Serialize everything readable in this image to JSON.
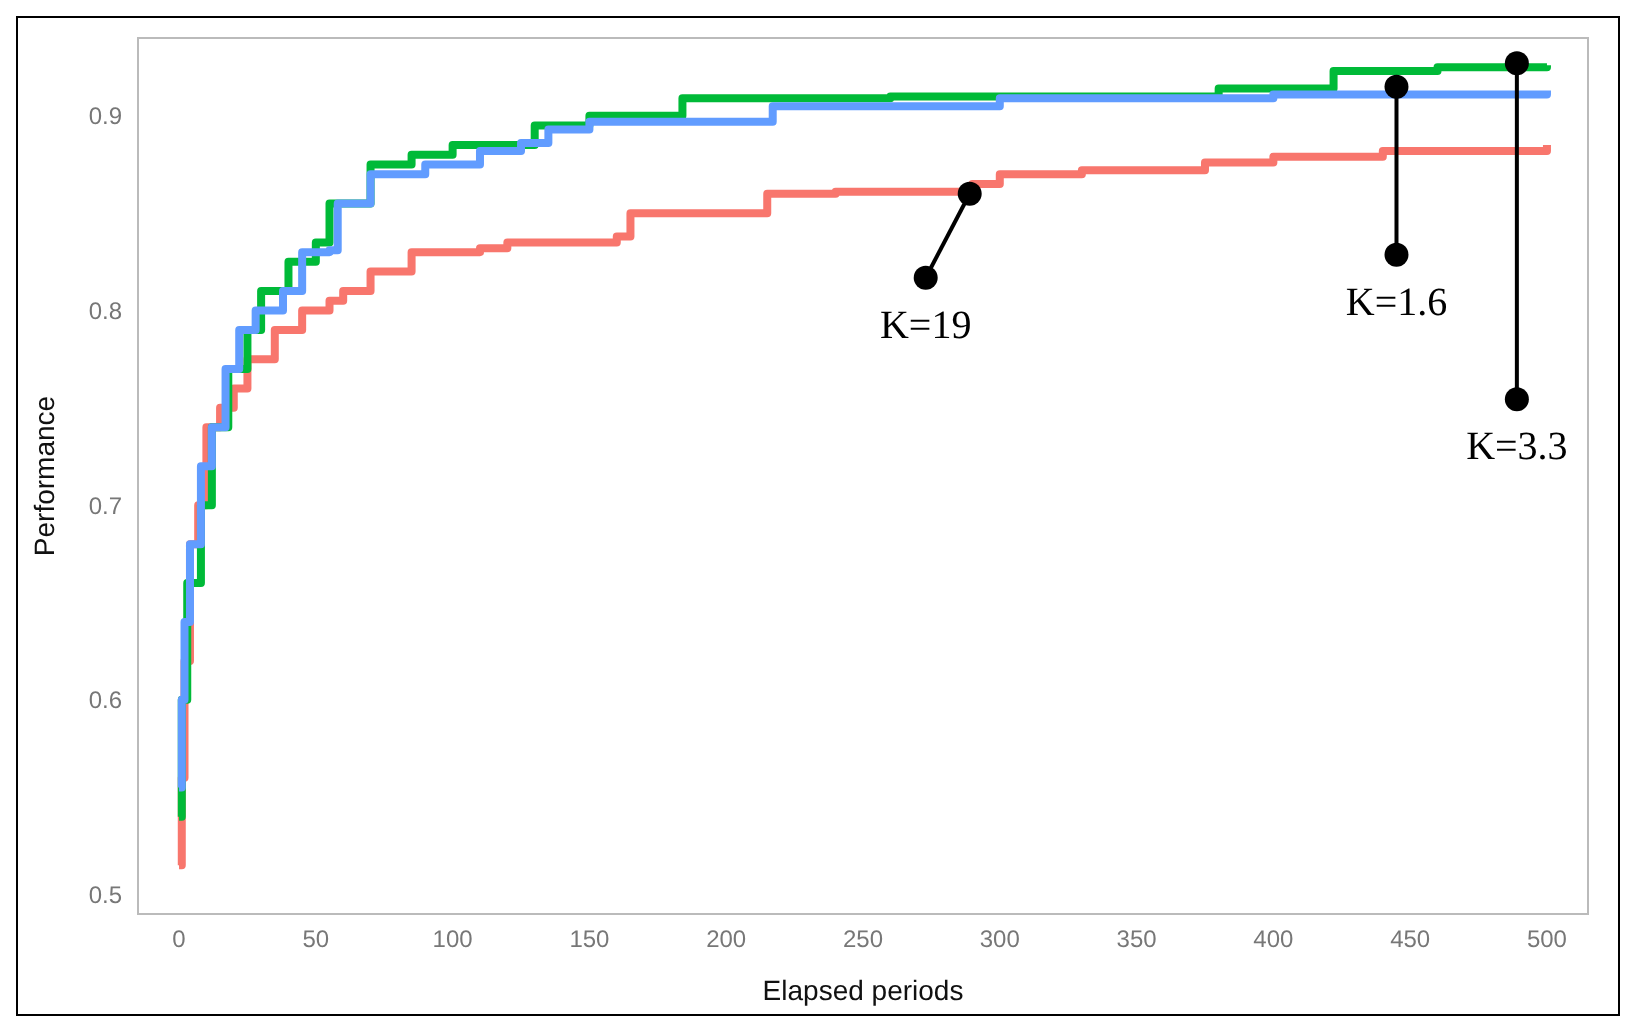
{
  "chart_data": {
    "type": "step",
    "xlabel": "Elapsed periods",
    "ylabel": "Performance",
    "xlim": [
      -15,
      515
    ],
    "xticks": [
      0,
      50,
      100,
      150,
      200,
      250,
      300,
      350,
      400,
      450,
      500
    ],
    "ylim": [
      0.49,
      0.94
    ],
    "yticks": [
      0.5,
      0.6,
      0.7,
      0.8,
      0.9
    ],
    "grid": false,
    "marker": "none",
    "line_style": "solid",
    "series": [
      {
        "color": "#f8766d",
        "x": [
          0,
          1,
          2,
          4,
          7,
          10,
          15,
          20,
          25,
          35,
          45,
          55,
          60,
          70,
          85,
          110,
          120,
          160,
          165,
          215,
          240,
          290,
          300,
          330,
          375,
          400,
          440,
          500
        ],
        "values": [
          0.515,
          0.56,
          0.62,
          0.68,
          0.7,
          0.74,
          0.75,
          0.76,
          0.775,
          0.79,
          0.8,
          0.805,
          0.81,
          0.82,
          0.83,
          0.832,
          0.835,
          0.838,
          0.85,
          0.86,
          0.861,
          0.865,
          0.87,
          0.872,
          0.876,
          0.879,
          0.882,
          0.885
        ]
      },
      {
        "color": "#00ba38",
        "x": [
          0,
          1,
          3,
          8,
          12,
          18,
          25,
          30,
          40,
          50,
          55,
          70,
          85,
          100,
          130,
          150,
          184,
          260,
          300,
          380,
          422,
          460,
          500
        ],
        "values": [
          0.54,
          0.6,
          0.66,
          0.7,
          0.74,
          0.77,
          0.79,
          0.81,
          0.825,
          0.835,
          0.855,
          0.875,
          0.88,
          0.885,
          0.895,
          0.9,
          0.909,
          0.91,
          0.91,
          0.914,
          0.923,
          0.925,
          0.926
        ]
      },
      {
        "color": "#619cff",
        "x": [
          0,
          1,
          2,
          4,
          8,
          12,
          17,
          22,
          28,
          38,
          45,
          55,
          58,
          70,
          90,
          110,
          125,
          135,
          150,
          217,
          300,
          400,
          500
        ],
        "values": [
          0.555,
          0.6,
          0.64,
          0.68,
          0.72,
          0.74,
          0.77,
          0.79,
          0.8,
          0.81,
          0.83,
          0.831,
          0.855,
          0.87,
          0.875,
          0.882,
          0.886,
          0.893,
          0.897,
          0.905,
          0.909,
          0.911,
          0.913
        ]
      }
    ],
    "annotations": [
      {
        "text": "K=19",
        "x": 289,
        "y": 0.86
      },
      {
        "text": "K=1.6",
        "x": 445,
        "y": 0.915
      },
      {
        "text": "K=3.3",
        "x": 489,
        "y": 0.927
      }
    ]
  }
}
